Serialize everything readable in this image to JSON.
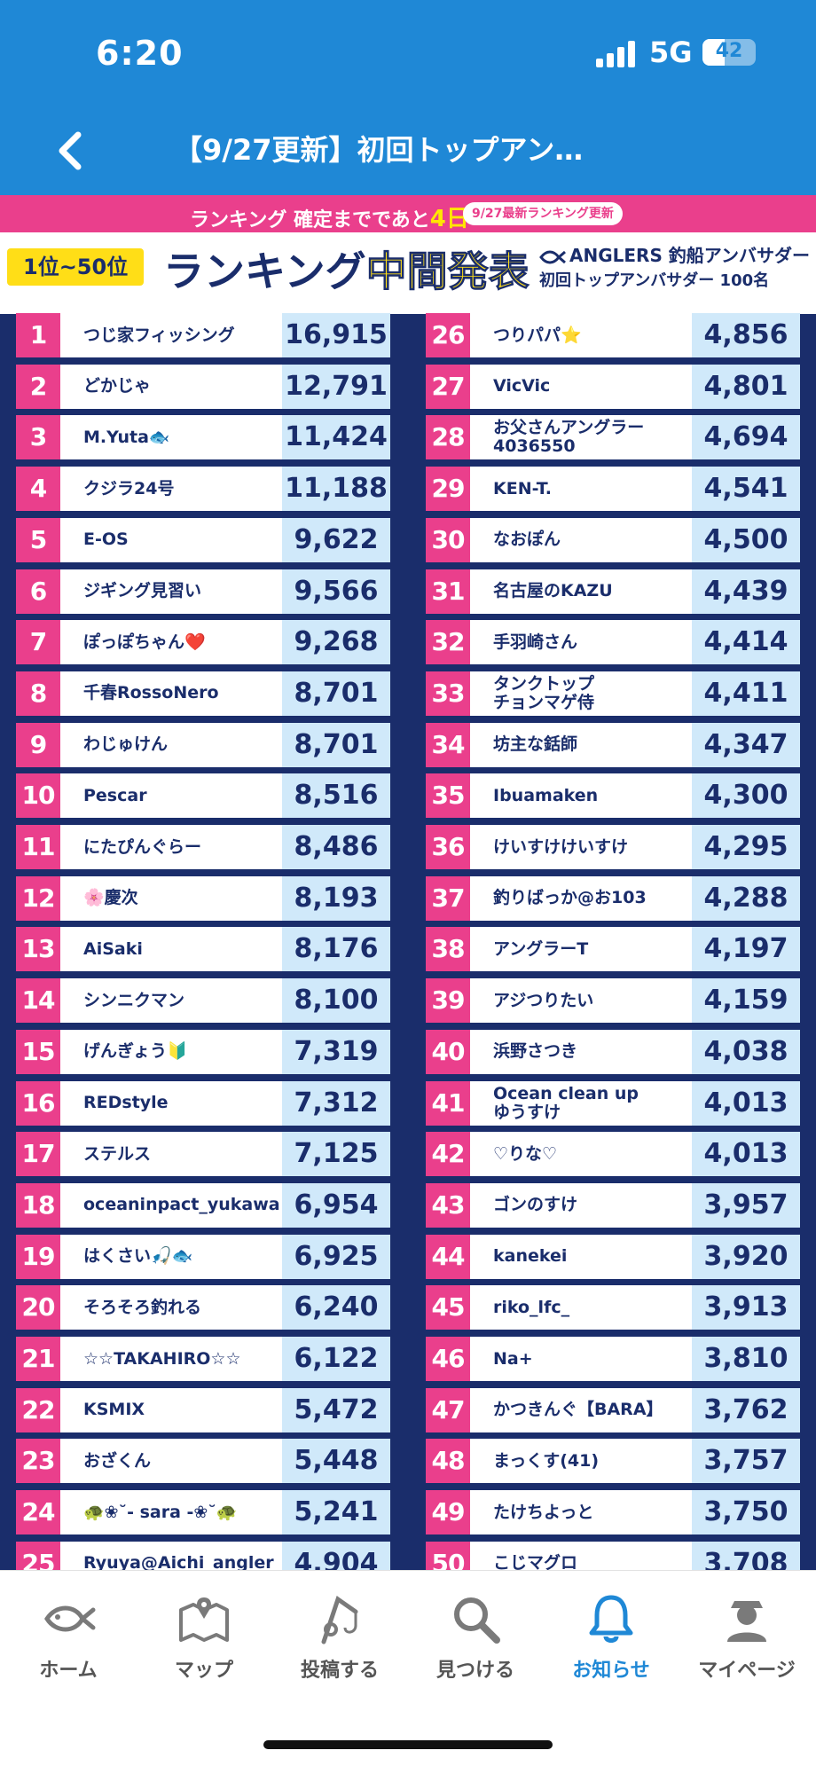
{
  "status": {
    "time": "6:20",
    "network": "5G",
    "battery": "42",
    "battery_level": 0.42
  },
  "nav": {
    "title": "【9/27更新】初回トップアン…"
  },
  "banner": {
    "text_before": "ランキング 確定までであと",
    "days": "4日",
    "tag": "9/27最新ランキング更新"
  },
  "header": {
    "range": "1位~50位",
    "title_a": "ランキング",
    "title_b": "中間発表",
    "brand": "ANGLERS 釣船アンバサダー",
    "brand_sub": "初回トップアンバサダー 100名"
  },
  "left_column": [
    {
      "rank": "1",
      "name": "つじ家フィッシング",
      "score": "16,915"
    },
    {
      "rank": "2",
      "name": "どかじゃ",
      "score": "12,791"
    },
    {
      "rank": "3",
      "name": "M.Yuta🐟",
      "score": "11,424"
    },
    {
      "rank": "4",
      "name": "クジラ24号",
      "score": "11,188"
    },
    {
      "rank": "5",
      "name": "E-OS",
      "score": "9,622"
    },
    {
      "rank": "6",
      "name": "ジギング見習い",
      "score": "9,566"
    },
    {
      "rank": "7",
      "name": "ぽっぽちゃん❤️",
      "score": "9,268"
    },
    {
      "rank": "8",
      "name": "千春RossoNero",
      "score": "8,701"
    },
    {
      "rank": "9",
      "name": "わじゅけん",
      "score": "8,701"
    },
    {
      "rank": "10",
      "name": "Pescar",
      "score": "8,516"
    },
    {
      "rank": "11",
      "name": "にたぴんぐらー",
      "score": "8,486"
    },
    {
      "rank": "12",
      "name": "🌸慶次",
      "score": "8,193"
    },
    {
      "rank": "13",
      "name": "AiSaki",
      "score": "8,176"
    },
    {
      "rank": "14",
      "name": "シンニクマン",
      "score": "8,100"
    },
    {
      "rank": "15",
      "name": "げんぎょう🔰",
      "score": "7,319"
    },
    {
      "rank": "16",
      "name": "REDstyle",
      "score": "7,312"
    },
    {
      "rank": "17",
      "name": "ステルス",
      "score": "7,125"
    },
    {
      "rank": "18",
      "name": "oceaninpact_yukawa",
      "score": "6,954"
    },
    {
      "rank": "19",
      "name": "はくさい🎣🐟",
      "score": "6,925"
    },
    {
      "rank": "20",
      "name": "そろそろ釣れる",
      "score": "6,240"
    },
    {
      "rank": "21",
      "name": "☆☆TAKAHIRO☆☆",
      "score": "6,122"
    },
    {
      "rank": "22",
      "name": "KSMIX",
      "score": "5,472"
    },
    {
      "rank": "23",
      "name": "おざくん",
      "score": "5,448"
    },
    {
      "rank": "24",
      "name": "🐢❀˘- sara -❀˘🐢",
      "score": "5,241"
    },
    {
      "rank": "25",
      "name": "Ryuya@Aichi_angler",
      "score": "4,904"
    }
  ],
  "right_column": [
    {
      "rank": "26",
      "name": "つりパパ⭐",
      "score": "4,856"
    },
    {
      "rank": "27",
      "name": "VicVic",
      "score": "4,801"
    },
    {
      "rank": "28",
      "name": "お父さんアングラー\n4036550",
      "score": "4,694"
    },
    {
      "rank": "29",
      "name": "KEN-T.",
      "score": "4,541"
    },
    {
      "rank": "30",
      "name": "なおぽん",
      "score": "4,500"
    },
    {
      "rank": "31",
      "name": "名古屋のKAZU",
      "score": "4,439"
    },
    {
      "rank": "32",
      "name": "手羽崎さん",
      "score": "4,414"
    },
    {
      "rank": "33",
      "name": "タンクトップ\nチョンマゲ侍",
      "score": "4,411"
    },
    {
      "rank": "34",
      "name": "坊主な銛師",
      "score": "4,347"
    },
    {
      "rank": "35",
      "name": "Ibuamaken",
      "score": "4,300"
    },
    {
      "rank": "36",
      "name": "けいすけけいすけ",
      "score": "4,295"
    },
    {
      "rank": "37",
      "name": "釣りばっか@お103",
      "score": "4,288"
    },
    {
      "rank": "38",
      "name": "アングラーT",
      "score": "4,197"
    },
    {
      "rank": "39",
      "name": "アジつりたい",
      "score": "4,159"
    },
    {
      "rank": "40",
      "name": "浜野さつき",
      "score": "4,038"
    },
    {
      "rank": "41",
      "name": "Ocean clean up\nゆうすけ",
      "score": "4,013"
    },
    {
      "rank": "42",
      "name": "♡りな♡",
      "score": "4,013"
    },
    {
      "rank": "43",
      "name": "ゴンのすけ",
      "score": "3,957"
    },
    {
      "rank": "44",
      "name": "kanekei",
      "score": "3,920"
    },
    {
      "rank": "45",
      "name": "riko_lfc_",
      "score": "3,913"
    },
    {
      "rank": "46",
      "name": "Na+",
      "score": "3,810"
    },
    {
      "rank": "47",
      "name": "かつきんぐ【BARA】",
      "score": "3,762"
    },
    {
      "rank": "48",
      "name": "まっくす(41)",
      "score": "3,757"
    },
    {
      "rank": "49",
      "name": "たけちよっと",
      "score": "3,750"
    },
    {
      "rank": "50",
      "name": "こじマグロ",
      "score": "3,708"
    }
  ],
  "tabs": [
    {
      "label": "ホーム",
      "icon": "fish-icon"
    },
    {
      "label": "マップ",
      "icon": "map-icon"
    },
    {
      "label": "投稿する",
      "icon": "fishing-rod-icon"
    },
    {
      "label": "見つける",
      "icon": "search-icon"
    },
    {
      "label": "お知らせ",
      "icon": "bell-icon"
    },
    {
      "label": "マイページ",
      "icon": "person-icon"
    }
  ],
  "active_tab": "お知らせ",
  "colors": {
    "primary": "#1f88d6",
    "pink": "#ea3f8c",
    "navy": "#1a2d6b",
    "yellow": "#ffde17",
    "score_bg": "#d0e9fa"
  }
}
